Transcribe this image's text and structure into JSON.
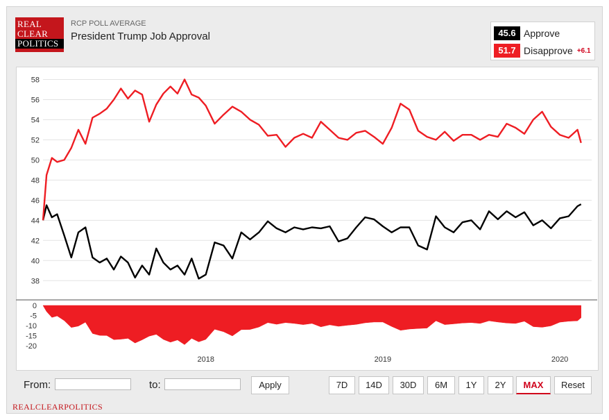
{
  "header": {
    "logo_lines": [
      "REAL",
      "CLEAR",
      "POLITICS"
    ],
    "subtitle": "RCP POLL AVERAGE",
    "title": "President Trump Job Approval"
  },
  "legend": {
    "approve": {
      "value": "45.6",
      "label": "Approve",
      "color": "#000000"
    },
    "disapprove": {
      "value": "51.7",
      "label": "Disapprove",
      "color": "#ee1d23",
      "spread": "+6.1"
    }
  },
  "controls": {
    "from_label": "From:",
    "to_label": "to:",
    "from_value": "",
    "to_value": "",
    "apply_label": "Apply",
    "ranges": [
      "7D",
      "14D",
      "30D",
      "6M",
      "1Y",
      "2Y",
      "MAX"
    ],
    "active_range": "MAX",
    "reset_label": "Reset"
  },
  "footer": {
    "text": "REALCLEARPOLITICS"
  },
  "chart_data": {
    "type": "line",
    "title": "President Trump Job Approval",
    "subtitle": "RCP POLL AVERAGE",
    "xlabel": "",
    "ylabel": "",
    "xlim": [
      2017.08,
      2020.18
    ],
    "ylim": [
      36.5,
      59
    ],
    "x_ticks": [
      "2018",
      "2019",
      "2020"
    ],
    "x_tick_values": [
      2018.0,
      2019.0,
      2020.0
    ],
    "y_ticks": [
      "38",
      "40",
      "42",
      "44",
      "46",
      "48",
      "50",
      "52",
      "54",
      "56",
      "58"
    ],
    "grid": true,
    "series": [
      {
        "name": "Approve",
        "color": "#000000",
        "x": [
          2017.08,
          2017.1,
          2017.13,
          2017.16,
          2017.2,
          2017.24,
          2017.28,
          2017.32,
          2017.36,
          2017.4,
          2017.44,
          2017.48,
          2017.52,
          2017.56,
          2017.6,
          2017.64,
          2017.68,
          2017.72,
          2017.76,
          2017.8,
          2017.84,
          2017.88,
          2017.92,
          2017.96,
          2018.0,
          2018.05,
          2018.1,
          2018.15,
          2018.2,
          2018.25,
          2018.3,
          2018.35,
          2018.4,
          2018.45,
          2018.5,
          2018.55,
          2018.6,
          2018.65,
          2018.7,
          2018.75,
          2018.8,
          2018.85,
          2018.9,
          2018.95,
          2019.0,
          2019.05,
          2019.1,
          2019.15,
          2019.2,
          2019.25,
          2019.3,
          2019.35,
          2019.4,
          2019.45,
          2019.5,
          2019.55,
          2019.6,
          2019.65,
          2019.7,
          2019.75,
          2019.8,
          2019.85,
          2019.9,
          2019.95,
          2020.0,
          2020.05,
          2020.1,
          2020.12
        ],
        "values": [
          44.0,
          45.5,
          44.3,
          44.6,
          42.5,
          40.3,
          42.8,
          43.3,
          40.3,
          39.8,
          40.2,
          39.1,
          40.4,
          39.8,
          38.3,
          39.5,
          38.6,
          41.2,
          39.8,
          39.1,
          39.5,
          38.6,
          40.2,
          38.2,
          38.6,
          41.8,
          41.5,
          40.2,
          42.8,
          42.1,
          42.8,
          43.9,
          43.2,
          42.8,
          43.3,
          43.1,
          43.3,
          43.2,
          43.4,
          41.9,
          42.2,
          43.3,
          44.3,
          44.1,
          43.4,
          42.8,
          43.3,
          43.3,
          41.5,
          41.1,
          44.4,
          43.3,
          42.8,
          43.8,
          44.0,
          43.1,
          44.9,
          44.1,
          44.9,
          44.3,
          44.8,
          43.5,
          44.0,
          43.2,
          44.2,
          44.4,
          45.4,
          45.6
        ]
      },
      {
        "name": "Disapprove",
        "color": "#ee1d23",
        "x": [
          2017.08,
          2017.1,
          2017.13,
          2017.16,
          2017.2,
          2017.24,
          2017.28,
          2017.32,
          2017.36,
          2017.4,
          2017.44,
          2017.48,
          2017.52,
          2017.56,
          2017.6,
          2017.64,
          2017.68,
          2017.72,
          2017.76,
          2017.8,
          2017.84,
          2017.88,
          2017.92,
          2017.96,
          2018.0,
          2018.05,
          2018.1,
          2018.15,
          2018.2,
          2018.25,
          2018.3,
          2018.35,
          2018.4,
          2018.45,
          2018.5,
          2018.55,
          2018.6,
          2018.65,
          2018.7,
          2018.75,
          2018.8,
          2018.85,
          2018.9,
          2018.95,
          2019.0,
          2019.05,
          2019.1,
          2019.15,
          2019.2,
          2019.25,
          2019.3,
          2019.35,
          2019.4,
          2019.45,
          2019.5,
          2019.55,
          2019.6,
          2019.65,
          2019.7,
          2019.75,
          2019.8,
          2019.85,
          2019.9,
          2019.95,
          2020.0,
          2020.05,
          2020.1,
          2020.12
        ],
        "values": [
          44.0,
          48.5,
          50.2,
          49.8,
          50.0,
          51.2,
          53.0,
          51.6,
          54.2,
          54.6,
          55.1,
          56.0,
          57.1,
          56.1,
          56.9,
          56.5,
          53.8,
          55.5,
          56.6,
          57.3,
          56.6,
          58.0,
          56.5,
          56.2,
          55.4,
          53.6,
          54.5,
          55.3,
          54.8,
          54.0,
          53.5,
          52.4,
          52.5,
          51.3,
          52.2,
          52.6,
          52.2,
          53.8,
          53.0,
          52.2,
          52.0,
          52.7,
          52.9,
          52.3,
          51.6,
          53.2,
          55.6,
          55.0,
          52.9,
          52.3,
          52.0,
          52.8,
          51.9,
          52.5,
          52.5,
          52.0,
          52.5,
          52.3,
          53.6,
          53.2,
          52.6,
          54.0,
          54.8,
          53.3,
          52.5,
          52.2,
          53.0,
          51.7
        ]
      }
    ],
    "spread_panel": {
      "type": "area",
      "name": "Spread",
      "color": "#ee1d23",
      "ylim": [
        -22,
        0
      ],
      "y_ticks": [
        "0",
        "-5",
        "-10",
        "-15",
        "-20"
      ]
    }
  }
}
